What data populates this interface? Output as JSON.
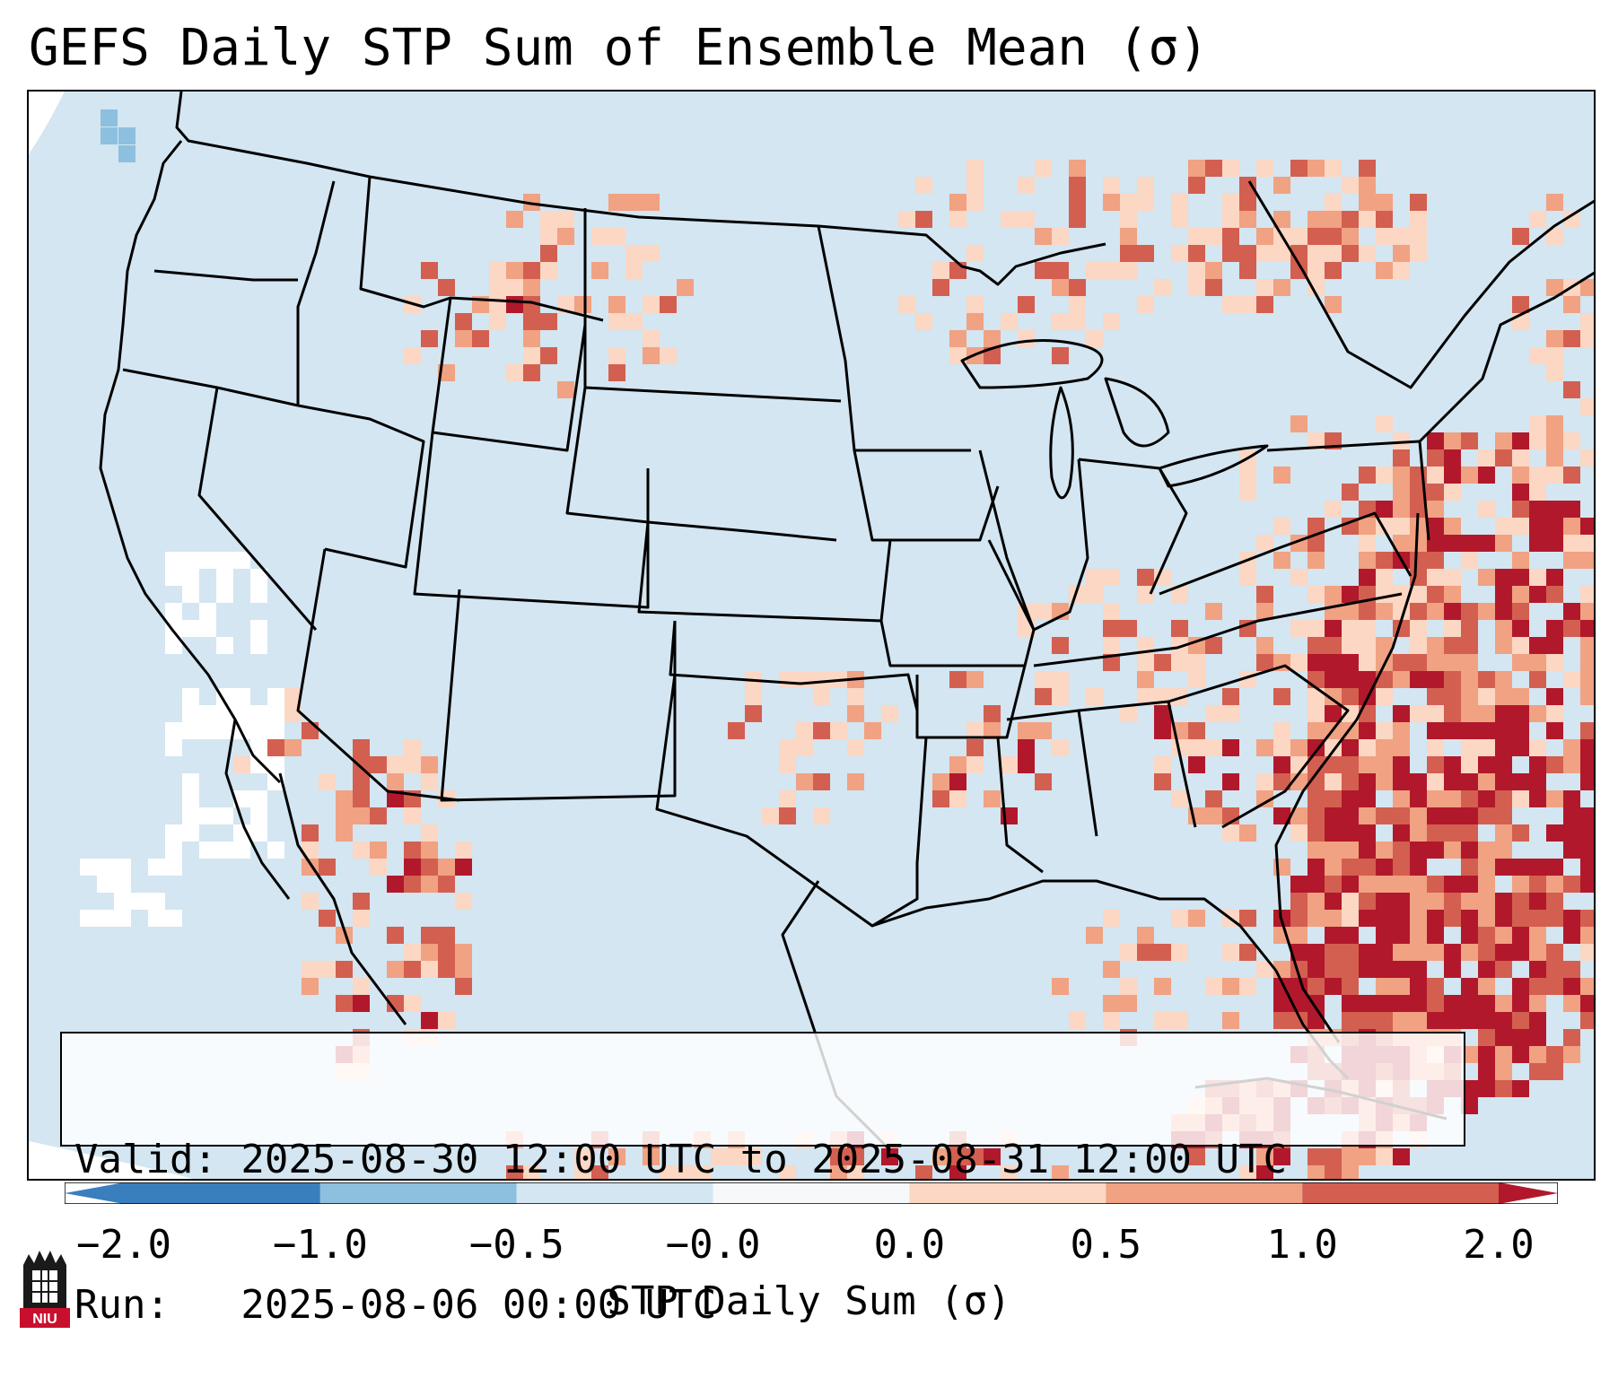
{
  "title": "GEFS Daily STP Sum of Ensemble Mean (σ)",
  "info": {
    "valid": "Valid: 2025-08-30 12:00 UTC to 2025-08-31 12:00 UTC",
    "run": "Run:   2025-08-06 00:00 UTC"
  },
  "colorbar": {
    "label": "STP Daily Sum (σ)",
    "ticks": [
      "−2.0",
      "−1.0",
      "−0.5",
      "−0.0",
      "0.0",
      "0.5",
      "1.0",
      "2.0"
    ],
    "colors": [
      "#3a7fbd",
      "#8cc0de",
      "#d3e6f1",
      "#f7f8fa",
      "#fbd7c4",
      "#f0a283",
      "#d35f50",
      "#b2182b"
    ]
  },
  "logo": {
    "text": "NIU",
    "icon": "university-logo-icon"
  },
  "map": {
    "background": "#d3e6f1",
    "ocean_bottom_left": "#e8f1f7"
  }
}
